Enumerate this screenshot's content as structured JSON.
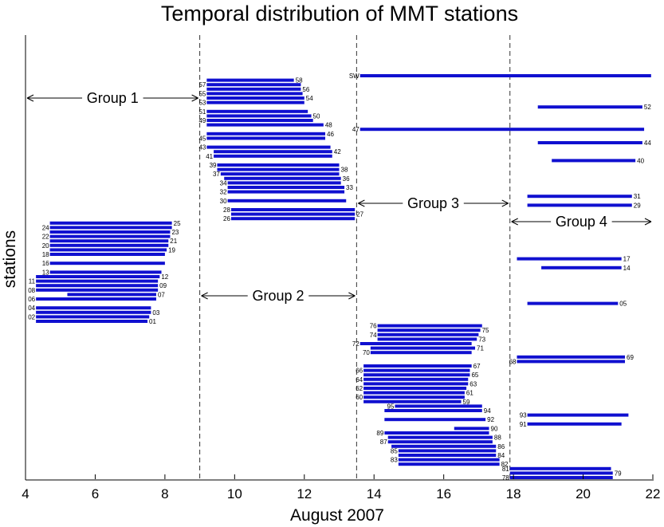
{
  "chart_data": {
    "type": "bar",
    "orientation": "horizontal-gantt",
    "title": "Temporal distribution of MMT stations",
    "xlabel": "August 2007",
    "ylabel": "stations",
    "xlim": [
      4,
      22
    ],
    "xticks": [
      "4",
      "6",
      "8",
      "10",
      "12",
      "14",
      "16",
      "18",
      "20",
      "22"
    ],
    "bar_color": "#1010d0",
    "grid": false,
    "dividers": [
      9.0,
      13.5,
      17.9
    ],
    "groups": [
      {
        "label": "Group 1",
        "from": 4.0,
        "to": 9.0
      },
      {
        "label": "Group 2",
        "from": 9.0,
        "to": 13.5
      },
      {
        "label": "Group 3",
        "from": 13.5,
        "to": 17.9
      },
      {
        "label": "Group 4",
        "from": 17.9,
        "to": 22.0
      }
    ],
    "stations": [
      {
        "label": "SW",
        "label_side": "left",
        "start": 13.6,
        "end": 21.95
      },
      {
        "label": "58",
        "label_side": "right",
        "start": 9.2,
        "end": 11.7
      },
      {
        "label": "57",
        "label_side": "left",
        "start": 9.2,
        "end": 11.9
      },
      {
        "label": "56",
        "label_side": "right",
        "start": 9.2,
        "end": 11.9
      },
      {
        "label": "55",
        "label_side": "left",
        "start": 9.2,
        "end": 11.95
      },
      {
        "label": "54",
        "label_side": "right",
        "start": 9.2,
        "end": 12.0
      },
      {
        "label": "53",
        "label_side": "left",
        "start": 9.2,
        "end": 12.0
      },
      {
        "label": "52",
        "label_side": "right",
        "start": 18.7,
        "end": 21.7
      },
      {
        "label": "51",
        "label_side": "left",
        "start": 9.2,
        "end": 12.1
      },
      {
        "label": "50",
        "label_side": "right",
        "start": 9.2,
        "end": 12.2
      },
      {
        "label": "49",
        "label_side": "left",
        "start": 9.2,
        "end": 12.25
      },
      {
        "label": "48",
        "label_side": "right",
        "start": 9.2,
        "end": 12.55
      },
      {
        "label": "47",
        "label_side": "left",
        "start": 13.6,
        "end": 21.75
      },
      {
        "label": "46",
        "label_side": "right",
        "start": 9.2,
        "end": 12.6
      },
      {
        "label": "45",
        "label_side": "left",
        "start": 9.2,
        "end": 12.6
      },
      {
        "label": "44",
        "label_side": "right",
        "start": 18.7,
        "end": 21.7
      },
      {
        "label": "43",
        "label_side": "left",
        "start": 9.2,
        "end": 12.75
      },
      {
        "label": "42",
        "label_side": "right",
        "start": 9.4,
        "end": 12.8
      },
      {
        "label": "41",
        "label_side": "left",
        "start": 9.4,
        "end": 12.8
      },
      {
        "label": "40",
        "label_side": "right",
        "start": 19.1,
        "end": 21.5
      },
      {
        "label": "39",
        "label_side": "left",
        "start": 9.5,
        "end": 13.0
      },
      {
        "label": "38",
        "label_side": "right",
        "start": 9.5,
        "end": 13.0
      },
      {
        "label": "37",
        "label_side": "left",
        "start": 9.6,
        "end": 13.0
      },
      {
        "label": "36",
        "label_side": "right",
        "start": 9.7,
        "end": 13.05
      },
      {
        "label": "34",
        "label_side": "left",
        "start": 9.8,
        "end": 13.05
      },
      {
        "label": "33",
        "label_side": "right",
        "start": 9.8,
        "end": 13.15
      },
      {
        "label": "32",
        "label_side": "left",
        "start": 9.8,
        "end": 13.15
      },
      {
        "label": "31",
        "label_side": "right",
        "start": 18.4,
        "end": 21.4
      },
      {
        "label": "30",
        "label_side": "left",
        "start": 9.8,
        "end": 13.2
      },
      {
        "label": "29",
        "label_side": "right",
        "start": 18.4,
        "end": 21.4
      },
      {
        "label": "28",
        "label_side": "left",
        "start": 9.9,
        "end": 13.45
      },
      {
        "label": "27",
        "label_side": "right",
        "start": 9.9,
        "end": 13.45
      },
      {
        "label": "26",
        "label_side": "left",
        "start": 9.9,
        "end": 13.45
      },
      {
        "label": "25",
        "label_side": "right",
        "start": 4.7,
        "end": 8.2
      },
      {
        "label": "24",
        "label_side": "left",
        "start": 4.7,
        "end": 8.2
      },
      {
        "label": "23",
        "label_side": "right",
        "start": 4.7,
        "end": 8.15
      },
      {
        "label": "22",
        "label_side": "left",
        "start": 4.7,
        "end": 8.15
      },
      {
        "label": "21",
        "label_side": "right",
        "start": 4.7,
        "end": 8.1
      },
      {
        "label": "20",
        "label_side": "left",
        "start": 4.7,
        "end": 8.1
      },
      {
        "label": "19",
        "label_side": "right",
        "start": 4.7,
        "end": 8.05
      },
      {
        "label": "18",
        "label_side": "left",
        "start": 4.7,
        "end": 8.0
      },
      {
        "label": "17",
        "label_side": "right",
        "start": 18.1,
        "end": 21.1
      },
      {
        "label": "16",
        "label_side": "left",
        "start": 4.7,
        "end": 8.0
      },
      {
        "label": "14",
        "label_side": "right",
        "start": 18.8,
        "end": 21.1
      },
      {
        "label": "13",
        "label_side": "left",
        "start": 4.7,
        "end": 7.9
      },
      {
        "label": "12",
        "label_side": "right",
        "start": 4.3,
        "end": 7.85
      },
      {
        "label": "11",
        "label_side": "left",
        "start": 4.3,
        "end": 7.8
      },
      {
        "label": "09",
        "label_side": "right",
        "start": 4.3,
        "end": 7.8
      },
      {
        "label": "08",
        "label_side": "left",
        "start": 4.3,
        "end": 7.8
      },
      {
        "label": "07",
        "label_side": "right",
        "start": 5.2,
        "end": 7.75
      },
      {
        "label": "06",
        "label_side": "left",
        "start": 4.3,
        "end": 7.75
      },
      {
        "label": "05",
        "label_side": "right",
        "start": 18.4,
        "end": 21.0
      },
      {
        "label": "04",
        "label_side": "left",
        "start": 4.3,
        "end": 7.6
      },
      {
        "label": "03",
        "label_side": "right",
        "start": 4.3,
        "end": 7.6
      },
      {
        "label": "02",
        "label_side": "left",
        "start": 4.3,
        "end": 7.55
      },
      {
        "label": "01",
        "label_side": "right",
        "start": 4.3,
        "end": 7.5
      },
      {
        "label": "76",
        "label_side": "left",
        "start": 14.1,
        "end": 17.1
      },
      {
        "label": "75",
        "label_side": "right",
        "start": 14.1,
        "end": 17.05
      },
      {
        "label": "74",
        "label_side": "left",
        "start": 14.1,
        "end": 17.0
      },
      {
        "label": "73",
        "label_side": "right",
        "start": 14.1,
        "end": 16.95
      },
      {
        "label": "72",
        "label_side": "left",
        "start": 13.6,
        "end": 16.8
      },
      {
        "label": "71",
        "label_side": "right",
        "start": 13.9,
        "end": 16.9
      },
      {
        "label": "70",
        "label_side": "left",
        "start": 13.9,
        "end": 16.8
      },
      {
        "label": "69",
        "label_side": "right",
        "start": 18.1,
        "end": 21.2
      },
      {
        "label": "68",
        "label_side": "left",
        "start": 18.1,
        "end": 21.2
      },
      {
        "label": "67",
        "label_side": "right",
        "start": 13.7,
        "end": 16.8
      },
      {
        "label": "66",
        "label_side": "left",
        "start": 13.7,
        "end": 16.75
      },
      {
        "label": "65",
        "label_side": "right",
        "start": 13.7,
        "end": 16.75
      },
      {
        "label": "64",
        "label_side": "left",
        "start": 13.7,
        "end": 16.7
      },
      {
        "label": "63",
        "label_side": "right",
        "start": 13.7,
        "end": 16.7
      },
      {
        "label": "62",
        "label_side": "left",
        "start": 13.7,
        "end": 16.65
      },
      {
        "label": "61",
        "label_side": "right",
        "start": 13.7,
        "end": 16.6
      },
      {
        "label": "60",
        "label_side": "left",
        "start": 13.7,
        "end": 16.6
      },
      {
        "label": "59",
        "label_side": "right",
        "start": 13.7,
        "end": 16.5
      },
      {
        "label": "95",
        "label_side": "left",
        "start": 14.6,
        "end": 17.1
      },
      {
        "label": "94",
        "label_side": "right",
        "start": 14.3,
        "end": 17.1
      },
      {
        "label": "93",
        "label_side": "left",
        "start": 18.4,
        "end": 21.3
      },
      {
        "label": "92",
        "label_side": "right",
        "start": 14.3,
        "end": 17.2
      },
      {
        "label": "91",
        "label_side": "left",
        "start": 18.4,
        "end": 21.1
      },
      {
        "label": "90",
        "label_side": "right",
        "start": 16.3,
        "end": 17.3
      },
      {
        "label": "89",
        "label_side": "left",
        "start": 14.3,
        "end": 17.3
      },
      {
        "label": "88",
        "label_side": "right",
        "start": 14.4,
        "end": 17.4
      },
      {
        "label": "87",
        "label_side": "left",
        "start": 14.4,
        "end": 17.4
      },
      {
        "label": "86",
        "label_side": "right",
        "start": 14.5,
        "end": 17.5
      },
      {
        "label": "85",
        "label_side": "left",
        "start": 14.7,
        "end": 17.5
      },
      {
        "label": "84",
        "label_side": "right",
        "start": 14.7,
        "end": 17.5
      },
      {
        "label": "83",
        "label_side": "left",
        "start": 14.7,
        "end": 17.6
      },
      {
        "label": "82",
        "label_side": "right",
        "start": 14.7,
        "end": 17.6
      },
      {
        "label": "81",
        "label_side": "left",
        "start": 17.9,
        "end": 20.8
      },
      {
        "label": "79",
        "label_side": "right",
        "start": 17.9,
        "end": 20.85
      },
      {
        "label": "78",
        "label_side": "left",
        "start": 17.9,
        "end": 20.85
      }
    ]
  }
}
